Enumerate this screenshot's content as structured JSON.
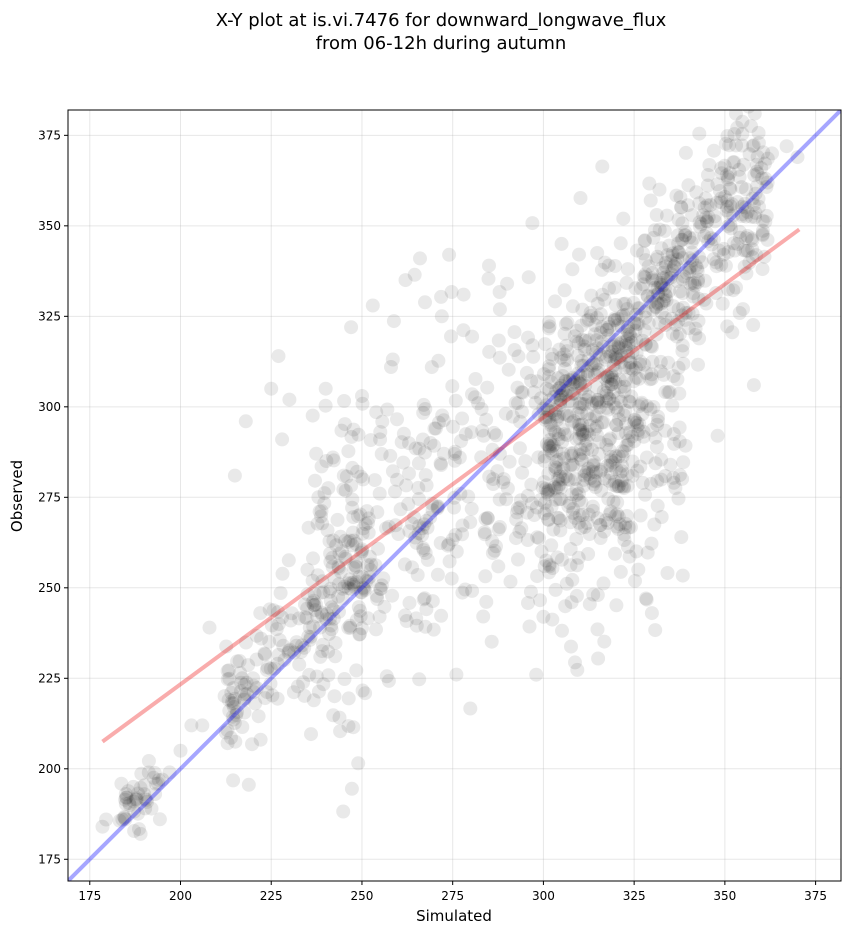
{
  "chart_data": {
    "type": "scatter",
    "title_line1": "X-Y plot at is.vi.7476 for downward_longwave_flux",
    "title_line2": "from 06-12h during autumn",
    "xlabel": "Simulated",
    "ylabel": "Observed",
    "xlim": [
      169,
      382
    ],
    "ylim": [
      169,
      382
    ],
    "xticks": [
      175,
      200,
      225,
      250,
      275,
      300,
      325,
      350,
      375
    ],
    "yticks": [
      175,
      200,
      225,
      250,
      275,
      300,
      325,
      350,
      375
    ],
    "grid": true,
    "point_color": "#000000",
    "point_alpha": 0.085,
    "one_to_one_line": {
      "color": "#0000ff",
      "from": [
        169,
        169
      ],
      "to": [
        382,
        382
      ]
    },
    "regression_line": {
      "color": "#ee1111",
      "from": [
        178.5,
        207.5
      ],
      "to": [
        370.5,
        349
      ]
    },
    "points_note": "about 1500 points sampled along the 1:1 line with spread",
    "points_sample": [
      [
        178.5,
        184
      ],
      [
        179.5,
        186
      ],
      [
        184,
        186
      ],
      [
        185,
        192
      ],
      [
        186,
        190
      ],
      [
        187,
        195
      ],
      [
        189,
        182
      ],
      [
        190,
        193
      ],
      [
        192,
        189
      ],
      [
        193,
        193
      ],
      [
        195,
        197
      ],
      [
        197,
        199
      ],
      [
        200,
        205
      ],
      [
        203,
        212
      ],
      [
        206,
        212
      ],
      [
        208,
        239
      ],
      [
        214,
        221
      ],
      [
        215,
        281
      ],
      [
        217,
        225
      ],
      [
        218,
        296
      ],
      [
        220,
        225
      ],
      [
        222,
        243
      ],
      [
        224,
        228
      ],
      [
        225,
        305
      ],
      [
        227,
        314
      ],
      [
        228,
        291
      ],
      [
        230,
        302
      ],
      [
        232,
        235
      ],
      [
        235,
        255
      ],
      [
        238,
        275
      ],
      [
        240,
        305
      ],
      [
        242,
        286
      ],
      [
        245,
        281
      ],
      [
        247,
        322
      ],
      [
        250,
        303
      ],
      [
        253,
        328
      ],
      [
        255,
        291
      ],
      [
        258,
        311
      ],
      [
        262,
        335
      ],
      [
        266,
        341
      ],
      [
        270,
        294
      ],
      [
        272,
        325
      ],
      [
        274,
        342
      ],
      [
        278,
        331
      ],
      [
        282,
        301
      ],
      [
        285,
        339
      ],
      [
        288,
        287
      ],
      [
        290,
        334
      ],
      [
        293,
        301
      ],
      [
        295,
        285
      ],
      [
        297,
        317
      ],
      [
        298,
        226
      ],
      [
        300,
        242
      ],
      [
        302,
        295
      ],
      [
        305,
        345
      ],
      [
        308,
        338
      ],
      [
        310,
        270
      ],
      [
        313,
        326
      ],
      [
        315,
        248
      ],
      [
        318,
        339
      ],
      [
        320,
        295
      ],
      [
        322,
        352
      ],
      [
        325,
        323
      ],
      [
        328,
        346
      ],
      [
        330,
        337
      ],
      [
        332,
        360
      ],
      [
        335,
        284
      ],
      [
        338,
        264
      ],
      [
        340,
        326
      ],
      [
        342,
        339
      ],
      [
        345,
        348
      ],
      [
        348,
        292
      ],
      [
        350,
        358
      ],
      [
        352,
        356
      ],
      [
        355,
        327
      ],
      [
        358,
        306
      ],
      [
        360,
        366
      ],
      [
        363,
        370
      ],
      [
        367,
        372
      ],
      [
        370,
        369
      ]
    ]
  }
}
